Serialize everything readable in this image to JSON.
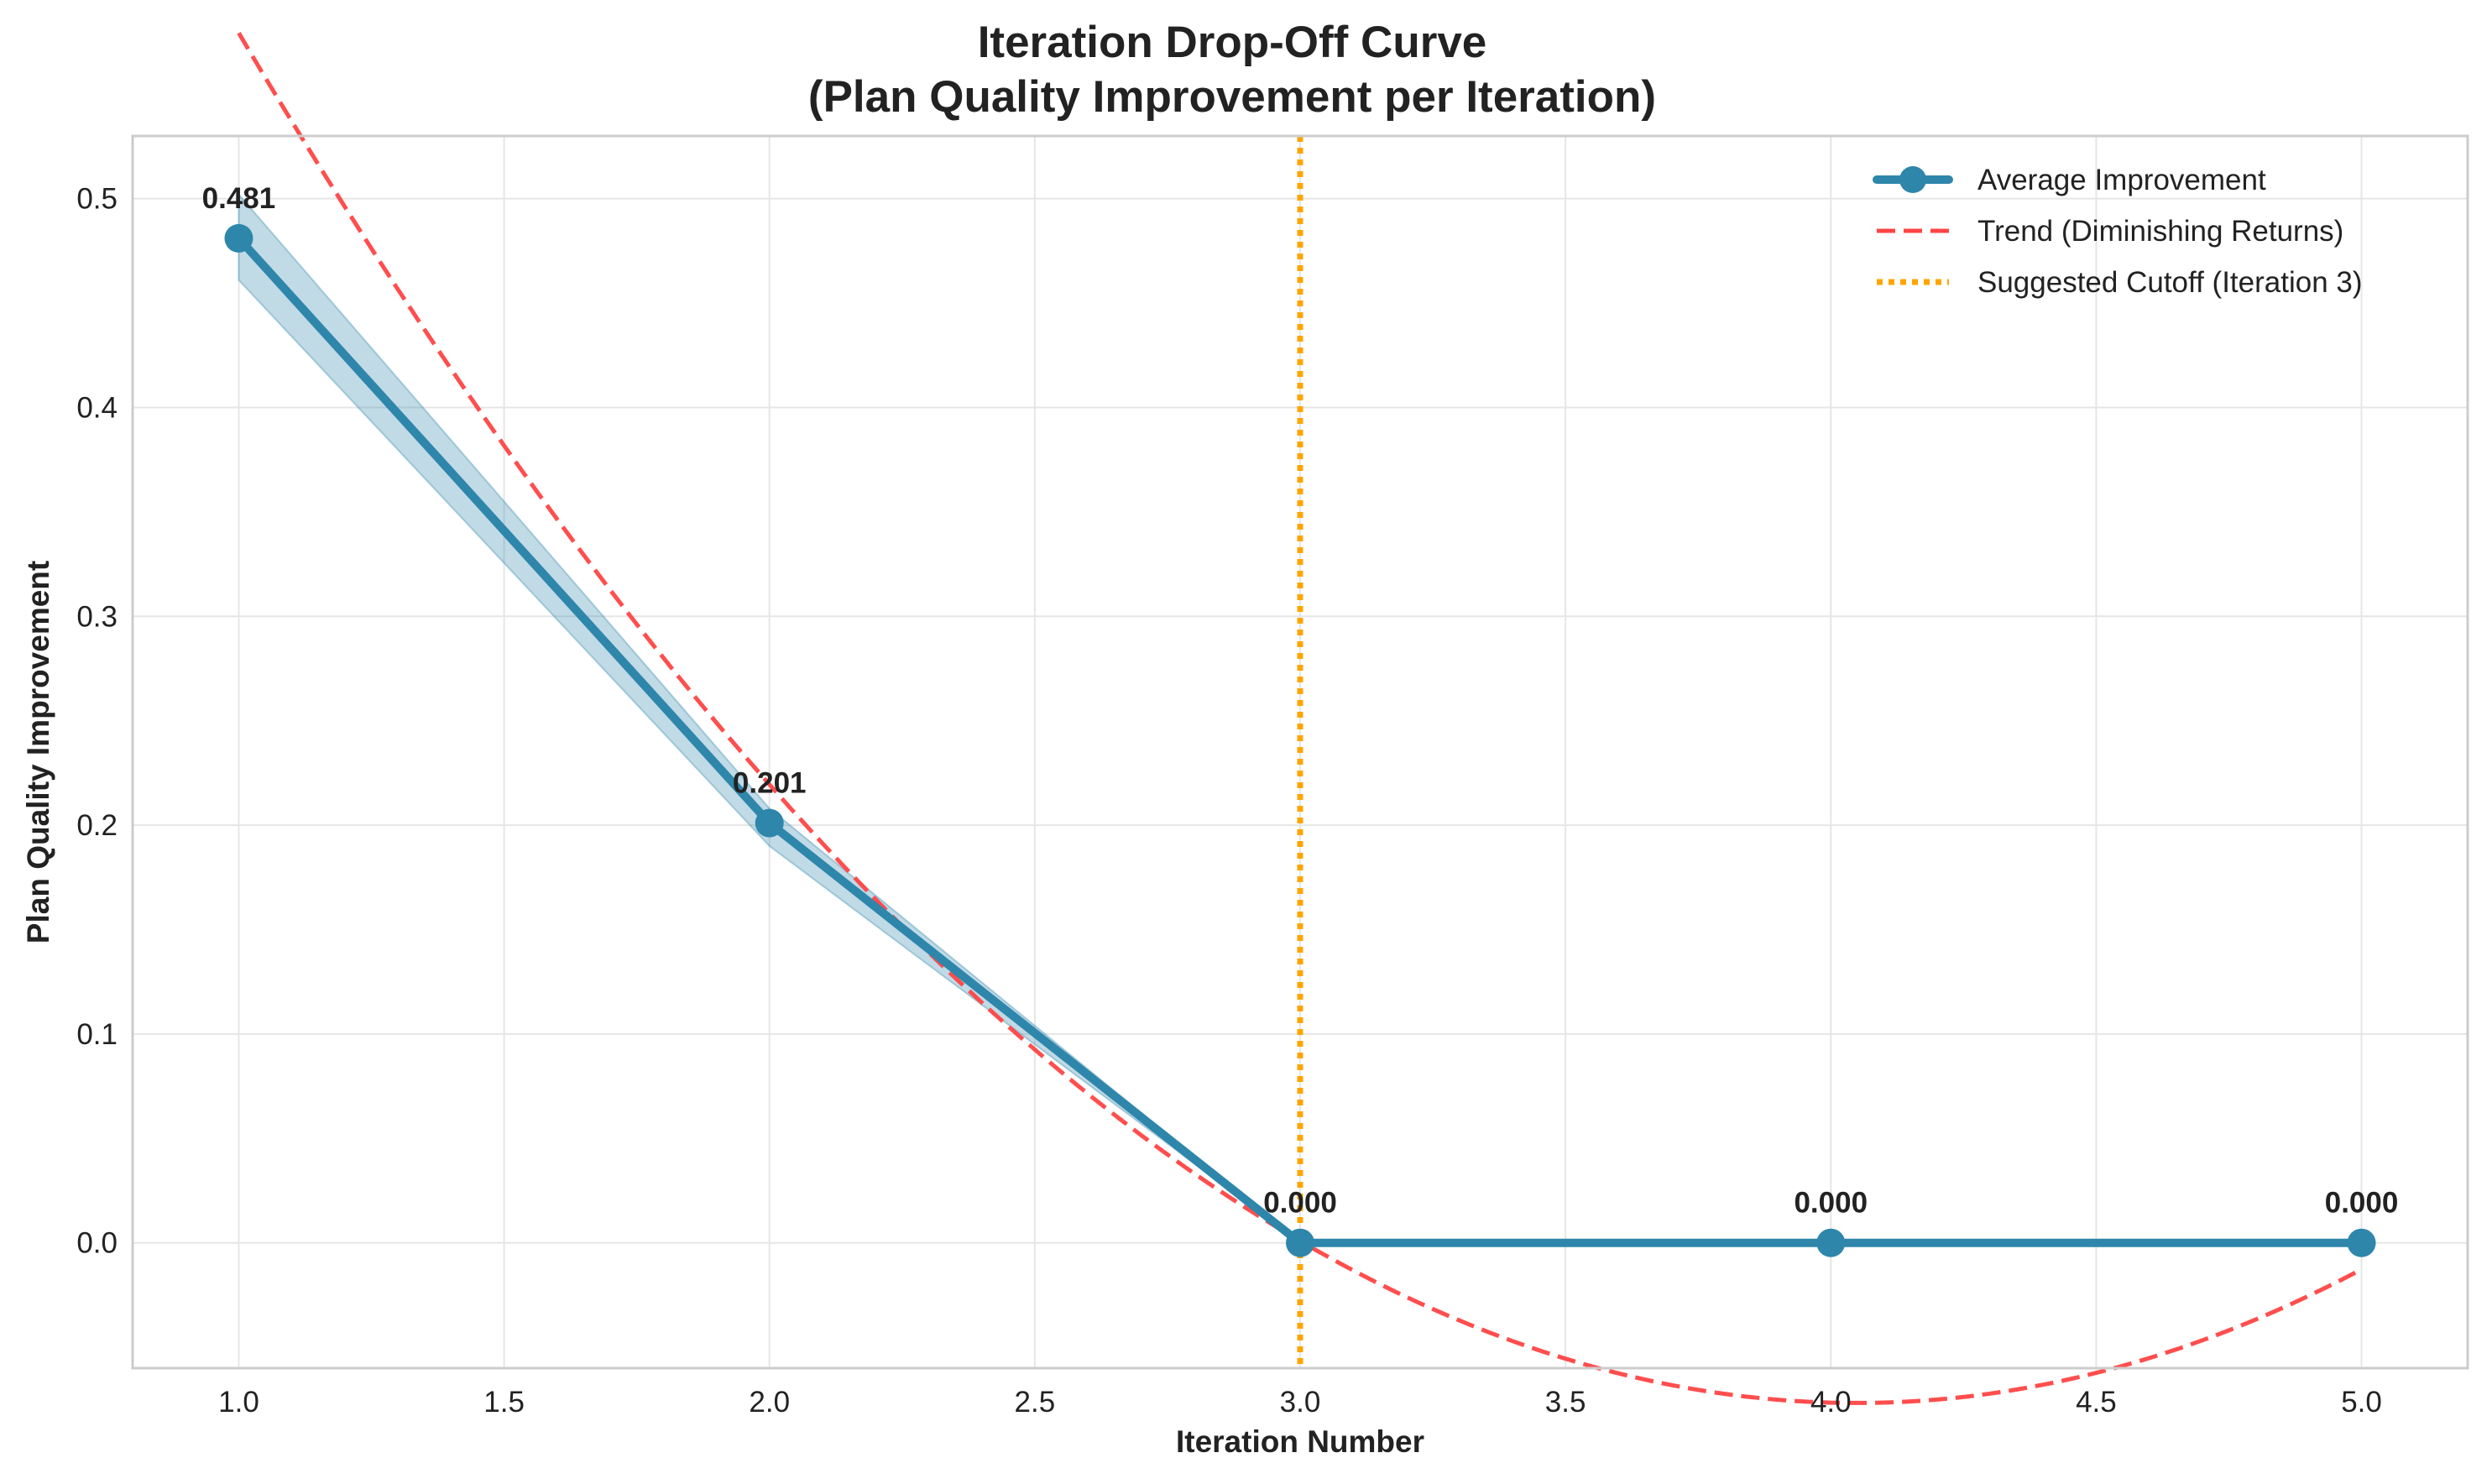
{
  "chart_data": {
    "type": "line",
    "title_line1": "Iteration Drop-Off Curve",
    "title_line2": "(Plan Quality Improvement per Iteration)",
    "xlabel": "Iteration Number",
    "ylabel": "Plan Quality Improvement",
    "xlim": [
      0.8,
      5.2
    ],
    "ylim": [
      -0.06,
      0.53
    ],
    "x_ticks": [
      1.0,
      1.5,
      2.0,
      2.5,
      3.0,
      3.5,
      4.0,
      4.5,
      5.0
    ],
    "x_tick_labels": [
      "1.0",
      "1.5",
      "2.0",
      "2.5",
      "3.0",
      "3.5",
      "4.0",
      "4.5",
      "5.0"
    ],
    "y_ticks": [
      0.0,
      0.1,
      0.2,
      0.3,
      0.4,
      0.5
    ],
    "y_tick_labels": [
      "0.0",
      "0.1",
      "0.2",
      "0.3",
      "0.4",
      "0.5"
    ],
    "grid": true,
    "legend_position": "top-right",
    "series": [
      {
        "name": "Average Improvement",
        "color": "#2e86ab",
        "style": "solid-with-markers",
        "x": [
          1,
          2,
          3,
          4,
          5
        ],
        "values": [
          0.481,
          0.201,
          0.0,
          0.0,
          0.0
        ],
        "data_labels": [
          "0.481",
          "0.201",
          "0.000",
          "0.000",
          "0.000"
        ],
        "band_upper": [
          0.502,
          0.208,
          0.0,
          0.0,
          0.0
        ],
        "band_lower": [
          0.461,
          0.19,
          0.0,
          0.0,
          0.0
        ]
      },
      {
        "name": "Trend (Diminishing Returns)",
        "color": "#ff4444",
        "style": "dashed",
        "fit": "quadratic",
        "fit_coefficients": [
          0.0706,
          -0.5716,
          1.0803
        ]
      },
      {
        "name": "Suggested Cutoff (Iteration 3)",
        "color": "#ffa500",
        "style": "dotted-vertical",
        "x_value": 3
      }
    ]
  }
}
